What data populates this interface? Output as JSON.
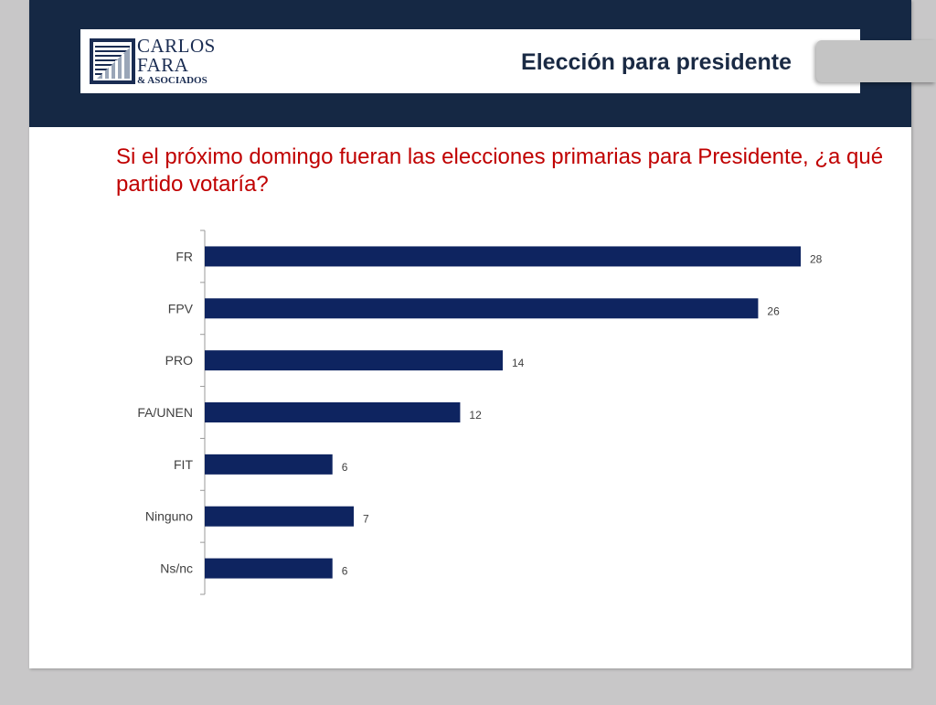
{
  "header": {
    "logo_line1": "CARLOS",
    "logo_line2": "FARA",
    "logo_line3": "& ASOCIADOS",
    "title": "Elección para presidente"
  },
  "question": "Si el próximo domingo fueran las elecciones primarias para Presidente, ¿a qué partido votaría?",
  "colors": {
    "header_band": "#152844",
    "bar": "#0e2460",
    "question_text": "#c00000"
  },
  "chart_data": {
    "type": "bar",
    "orientation": "horizontal",
    "categories": [
      "FR",
      "FPV",
      "PRO",
      "FA/UNEN",
      "FIT",
      "Ninguno",
      "Ns/nc"
    ],
    "values": [
      28,
      26,
      14,
      12,
      6,
      7,
      6
    ],
    "title": "",
    "xlabel": "",
    "ylabel": "",
    "xlim": [
      0,
      30
    ],
    "grid": false,
    "legend": "none",
    "data_labels": true
  }
}
